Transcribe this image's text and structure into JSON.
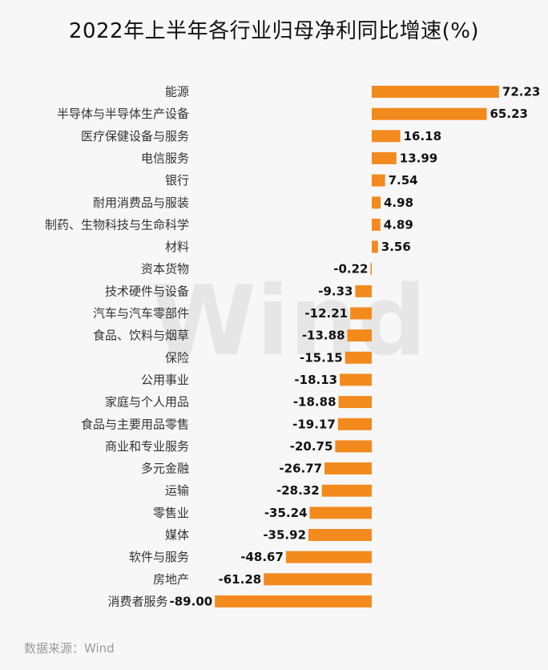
{
  "title": "2022年上半年各行业归母净利同比增速(%)",
  "source": "数据来源：Wind",
  "watermark": "Wind",
  "colors": {
    "bar": "#F28A1E",
    "background": "#f7f7f7"
  },
  "chart_data": {
    "type": "bar",
    "orientation": "horizontal",
    "title": "2022年上半年各行业归母净利同比增速(%)",
    "xlabel": "",
    "ylabel": "",
    "xlim": [
      -89,
      72.23
    ],
    "grid": false,
    "legend": "none",
    "categories": [
      "能源",
      "半导体与半导体生产设备",
      "医疗保健设备与服务",
      "电信服务",
      "银行",
      "耐用消费品与服装",
      "制药、生物科技与生命科学",
      "材料",
      "资本货物",
      "技术硬件与设备",
      "汽车与汽车零部件",
      "食品、饮料与烟草",
      "保险",
      "公用事业",
      "家庭与个人用品",
      "食品与主要用品零售",
      "商业和专业服务",
      "多元金融",
      "运输",
      "零售业",
      "媒体",
      "软件与服务",
      "房地产",
      "消费者服务"
    ],
    "values": [
      72.23,
      65.23,
      16.18,
      13.99,
      7.54,
      4.98,
      4.89,
      3.56,
      -0.22,
      -9.33,
      -12.21,
      -13.88,
      -15.15,
      -18.13,
      -18.88,
      -19.17,
      -20.75,
      -26.77,
      -28.32,
      -35.24,
      -35.92,
      -48.67,
      -61.28,
      -89.0
    ],
    "value_labels": [
      "72.23",
      "65.23",
      "16.18",
      "13.99",
      "7.54",
      "4.98",
      "4.89",
      "3.56",
      "-0.22",
      "-9.33",
      "-12.21",
      "-13.88",
      "-15.15",
      "-18.13",
      "-18.88",
      "-19.17",
      "-20.75",
      "-26.77",
      "-28.32",
      "-35.24",
      "-35.92",
      "-48.67",
      "-61.28",
      "-89.00"
    ]
  }
}
